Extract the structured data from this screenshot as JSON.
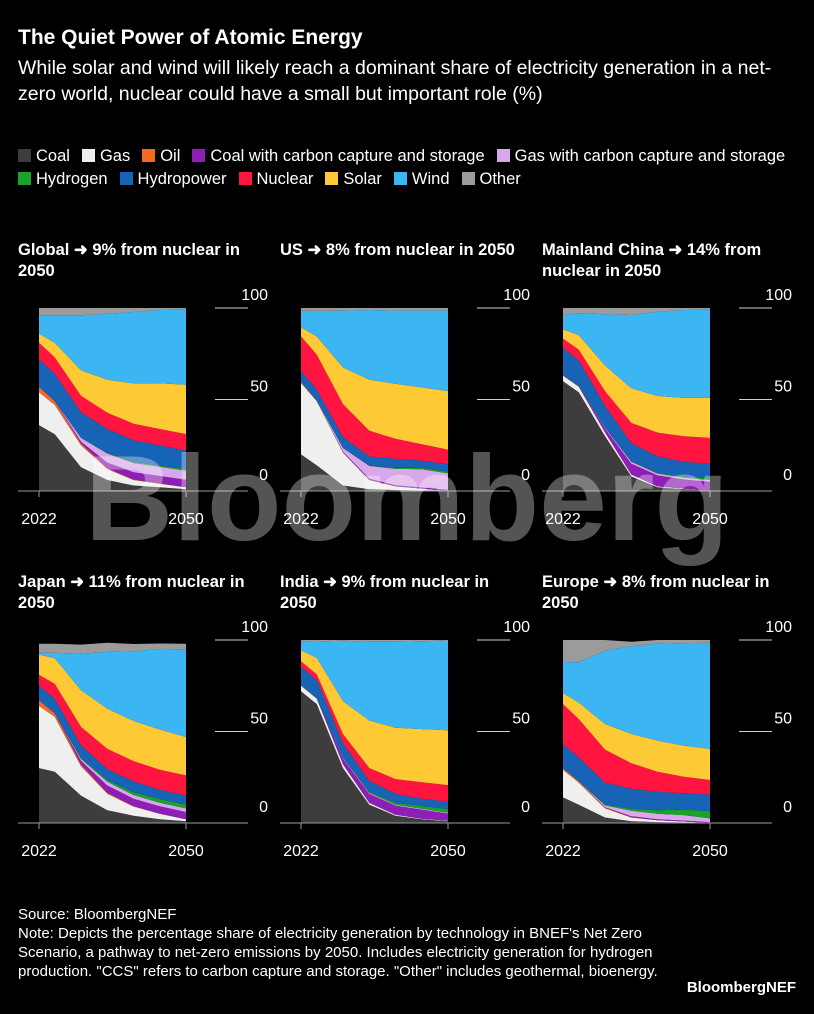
{
  "title": "The Quiet Power of Atomic Energy",
  "subtitle": "While solar and wind will likely reach a dominant share of electricity generation in a net-zero world, nuclear could have a small but important role (%)",
  "legend": [
    {
      "label": "Coal",
      "color": "#3d3d3d"
    },
    {
      "label": "Gas",
      "color": "#efefef"
    },
    {
      "label": "Oil",
      "color": "#f26b21"
    },
    {
      "label": "Coal with carbon capture and storage",
      "color": "#8e1fb6"
    },
    {
      "label": "Gas with carbon capture and storage",
      "color": "#d9a7eb"
    },
    {
      "label": "Hydrogen",
      "color": "#1aa32a"
    },
    {
      "label": "Hydropower",
      "color": "#1763b6"
    },
    {
      "label": "Nuclear",
      "color": "#ff1540"
    },
    {
      "label": "Solar",
      "color": "#fdca36"
    },
    {
      "label": "Wind",
      "color": "#3bb6f2"
    },
    {
      "label": "Other",
      "color": "#9b9b9b"
    }
  ],
  "watermark": "Bloomberg",
  "chart_data": [
    {
      "type": "area",
      "title": "Global ➜ 9% from nuclear in 2050",
      "x": [
        2022,
        2025,
        2030,
        2035,
        2040,
        2045,
        2050
      ],
      "ylim": [
        0,
        100
      ],
      "yticks": [
        0,
        50,
        100
      ],
      "x_tick_labels": [
        "2022",
        "2050"
      ],
      "series": [
        {
          "name": "Coal",
          "values": [
            36,
            31,
            13,
            6,
            3,
            2,
            1
          ]
        },
        {
          "name": "Gas",
          "values": [
            18,
            16,
            12,
            6,
            3,
            2,
            1
          ]
        },
        {
          "name": "Oil",
          "values": [
            3,
            2,
            1,
            0.5,
            0.3,
            0.2,
            0.1
          ]
        },
        {
          "name": "Coal with carbon capture and storage",
          "values": [
            0,
            0,
            1,
            3,
            4,
            4,
            4
          ]
        },
        {
          "name": "Gas with carbon capture and storage",
          "values": [
            0,
            0,
            2,
            5,
            5,
            5,
            5
          ]
        },
        {
          "name": "Hydrogen",
          "values": [
            0,
            0,
            0,
            0.3,
            0.5,
            0.7,
            1
          ]
        },
        {
          "name": "Hydropower",
          "values": [
            15,
            15,
            14,
            13,
            12,
            11,
            10
          ]
        },
        {
          "name": "Nuclear",
          "values": [
            9,
            9,
            9,
            9,
            9,
            9,
            9
          ]
        },
        {
          "name": "Solar",
          "values": [
            5,
            8,
            14,
            18,
            22,
            25,
            27
          ]
        },
        {
          "name": "Wind",
          "values": [
            10,
            15,
            30,
            36,
            39,
            40,
            41
          ]
        },
        {
          "name": "Other",
          "values": [
            4,
            4,
            4,
            3.2,
            2.2,
            1.1,
            0.9
          ]
        }
      ]
    },
    {
      "type": "area",
      "title": "US ➜ 8% from nuclear in 2050",
      "x": [
        2022,
        2025,
        2030,
        2035,
        2040,
        2045,
        2050
      ],
      "ylim": [
        0,
        100
      ],
      "yticks": [
        0,
        50,
        100
      ],
      "x_tick_labels": [
        "2022",
        "2050"
      ],
      "series": [
        {
          "name": "Coal",
          "values": [
            20,
            14,
            3,
            1,
            0.5,
            0.3,
            0
          ]
        },
        {
          "name": "Gas",
          "values": [
            39,
            35,
            18,
            5,
            2,
            1,
            0
          ]
        },
        {
          "name": "Oil",
          "values": [
            0.5,
            0.4,
            0.2,
            0.1,
            0,
            0,
            0
          ]
        },
        {
          "name": "Coal with carbon capture and storage",
          "values": [
            0,
            0,
            0.3,
            0.6,
            0.6,
            0.6,
            0.6
          ]
        },
        {
          "name": "Gas with carbon capture and storage",
          "values": [
            0,
            0,
            2,
            7,
            9,
            10,
            9
          ]
        },
        {
          "name": "Hydrogen",
          "values": [
            0,
            0,
            0,
            0.2,
            0.5,
            0.7,
            1
          ]
        },
        {
          "name": "Hydropower",
          "values": [
            6,
            6,
            6,
            5,
            5,
            4,
            4
          ]
        },
        {
          "name": "Nuclear",
          "values": [
            19,
            19,
            18,
            14,
            11,
            9,
            8
          ]
        },
        {
          "name": "Solar",
          "values": [
            5,
            10,
            20,
            28,
            30,
            31,
            32
          ]
        },
        {
          "name": "Wind",
          "values": [
            9,
            14,
            31,
            38,
            40,
            42,
            44
          ]
        },
        {
          "name": "Other",
          "values": [
            1.5,
            1.6,
            1.5,
            1.1,
            1.4,
            1.4,
            1.4
          ]
        }
      ]
    },
    {
      "type": "area",
      "title": "Mainland China ➜ 14% from nuclear in 2050",
      "x": [
        2022,
        2025,
        2030,
        2035,
        2040,
        2045,
        2050
      ],
      "ylim": [
        0,
        100
      ],
      "yticks": [
        0,
        50,
        100
      ],
      "x_tick_labels": [
        "2022",
        "2050"
      ],
      "series": [
        {
          "name": "Coal",
          "values": [
            60,
            54,
            30,
            8,
            2,
            1,
            0
          ]
        },
        {
          "name": "Gas",
          "values": [
            3,
            3,
            2,
            1,
            0.5,
            0.3,
            0
          ]
        },
        {
          "name": "Oil",
          "values": [
            0.3,
            0.2,
            0.1,
            0,
            0,
            0,
            0
          ]
        },
        {
          "name": "Coal with carbon capture and storage",
          "values": [
            0,
            0,
            2,
            6,
            6,
            5,
            5
          ]
        },
        {
          "name": "Gas with carbon capture and storage",
          "values": [
            0,
            0,
            0.5,
            1,
            1,
            1,
            1
          ]
        },
        {
          "name": "Hydrogen",
          "values": [
            0,
            0,
            0,
            0.2,
            0.4,
            0.6,
            1
          ]
        },
        {
          "name": "Hydropower",
          "values": [
            15,
            14,
            12,
            10,
            9,
            8,
            8
          ]
        },
        {
          "name": "Nuclear",
          "values": [
            5,
            6,
            8,
            11,
            13,
            14,
            14
          ]
        },
        {
          "name": "Solar",
          "values": [
            5,
            8,
            14,
            19,
            20,
            21,
            22
          ]
        },
        {
          "name": "Wind",
          "values": [
            8,
            12,
            28,
            40,
            46,
            48,
            48
          ]
        },
        {
          "name": "Other",
          "values": [
            3.7,
            2.8,
            3.4,
            3.8,
            2.1,
            1.1,
            1
          ]
        }
      ]
    },
    {
      "type": "area",
      "title": "Japan ➜ 11% from nuclear in 2050",
      "x": [
        2022,
        2025,
        2030,
        2035,
        2040,
        2045,
        2050
      ],
      "ylim": [
        0,
        100
      ],
      "yticks": [
        0,
        50,
        100
      ],
      "x_tick_labels": [
        "2022",
        "2050"
      ],
      "series": [
        {
          "name": "Coal",
          "values": [
            30,
            28,
            15,
            7,
            4,
            2,
            1
          ]
        },
        {
          "name": "Gas",
          "values": [
            34,
            30,
            16,
            9,
            5,
            3,
            1
          ]
        },
        {
          "name": "Oil",
          "values": [
            3,
            2,
            1,
            0.5,
            0.3,
            0.1,
            0
          ]
        },
        {
          "name": "Coal with carbon capture and storage",
          "values": [
            0,
            0,
            2,
            4,
            4,
            4,
            4
          ]
        },
        {
          "name": "Gas with carbon capture and storage",
          "values": [
            0,
            0,
            1,
            2,
            2,
            2,
            2
          ]
        },
        {
          "name": "Hydrogen",
          "values": [
            0,
            0,
            0.5,
            1,
            1.5,
            2,
            2
          ]
        },
        {
          "name": "Hydropower",
          "values": [
            8,
            8,
            7,
            6,
            6,
            5,
            5
          ]
        },
        {
          "name": "Nuclear",
          "values": [
            6,
            8,
            10,
            11,
            11,
            11,
            11
          ]
        },
        {
          "name": "Solar",
          "values": [
            11,
            14,
            20,
            22,
            22,
            22,
            21
          ]
        },
        {
          "name": "Wind",
          "values": [
            1,
            3,
            20,
            31,
            38,
            44,
            48
          ]
        },
        {
          "name": "Other",
          "values": [
            5,
            5,
            5,
            5,
            4,
            3,
            3
          ]
        }
      ]
    },
    {
      "type": "area",
      "title": "India ➜ 9% from nuclear in 2050",
      "x": [
        2022,
        2025,
        2030,
        2035,
        2040,
        2045,
        2050
      ],
      "ylim": [
        0,
        100
      ],
      "yticks": [
        0,
        50,
        100
      ],
      "x_tick_labels": [
        "2022",
        "2050"
      ],
      "series": [
        {
          "name": "Coal",
          "values": [
            72,
            65,
            30,
            10,
            4,
            2,
            1
          ]
        },
        {
          "name": "Gas",
          "values": [
            3,
            3,
            2,
            1,
            0.5,
            0.3,
            0.2
          ]
        },
        {
          "name": "Oil",
          "values": [
            0.3,
            0.2,
            0.1,
            0,
            0,
            0,
            0
          ]
        },
        {
          "name": "Coal with carbon capture and storage",
          "values": [
            0,
            0,
            3,
            5,
            5,
            5,
            4
          ]
        },
        {
          "name": "Gas with carbon capture and storage",
          "values": [
            0,
            0,
            0.5,
            0.5,
            0.5,
            0.5,
            0.5
          ]
        },
        {
          "name": "Hydrogen",
          "values": [
            0,
            0,
            0,
            0.5,
            1,
            1.5,
            2
          ]
        },
        {
          "name": "Hydropower",
          "values": [
            10,
            10,
            8,
            6,
            5,
            4,
            4
          ]
        },
        {
          "name": "Nuclear",
          "values": [
            3,
            3,
            5,
            7,
            8,
            9,
            9
          ]
        },
        {
          "name": "Solar",
          "values": [
            6,
            9,
            18,
            26,
            28,
            29,
            30
          ]
        },
        {
          "name": "Wind",
          "values": [
            5,
            9,
            33,
            43,
            47,
            48,
            49
          ]
        },
        {
          "name": "Other",
          "values": [
            0.7,
            0.8,
            0.4,
            1,
            1,
            0.7,
            0.3
          ]
        }
      ]
    },
    {
      "type": "area",
      "title": "Europe ➜ 8% from nuclear in 2050",
      "x": [
        2022,
        2025,
        2030,
        2035,
        2040,
        2045,
        2050
      ],
      "ylim": [
        0,
        100
      ],
      "yticks": [
        0,
        50,
        100
      ],
      "x_tick_labels": [
        "2022",
        "2050"
      ],
      "series": [
        {
          "name": "Coal",
          "values": [
            14,
            10,
            3,
            1,
            0.5,
            0.3,
            0
          ]
        },
        {
          "name": "Gas",
          "values": [
            15,
            12,
            5,
            2,
            1,
            0.5,
            0
          ]
        },
        {
          "name": "Oil",
          "values": [
            1,
            0.8,
            0.4,
            0.2,
            0,
            0,
            0
          ]
        },
        {
          "name": "Coal with carbon capture and storage",
          "values": [
            0,
            0,
            0.2,
            0.5,
            0.5,
            0.5,
            0.5
          ]
        },
        {
          "name": "Gas with carbon capture and storage",
          "values": [
            0,
            0,
            1,
            3,
            3,
            3,
            2
          ]
        },
        {
          "name": "Hydrogen",
          "values": [
            0,
            0,
            0.5,
            1,
            2,
            3,
            4
          ]
        },
        {
          "name": "Hydropower",
          "values": [
            13,
            13,
            12,
            11,
            10,
            9,
            9
          ]
        },
        {
          "name": "Nuclear",
          "values": [
            22,
            21,
            18,
            14,
            11,
            9,
            8
          ]
        },
        {
          "name": "Solar",
          "values": [
            6,
            9,
            14,
            16,
            17,
            17,
            17
          ]
        },
        {
          "name": "Wind",
          "values": [
            17,
            22,
            40,
            48,
            53,
            56,
            58
          ]
        },
        {
          "name": "Other",
          "values": [
            12,
            12.2,
            5.9,
            2.3,
            2,
            1.7,
            1.5
          ]
        }
      ]
    }
  ],
  "footer": {
    "source": "Source: BloombergNEF",
    "note": "Note: Depicts the percentage share of electricity generation by technology in BNEF's Net Zero Scenario, a pathway to net-zero emissions by 2050. Includes electricity generation for hydrogen production. \"CCS\" refers to carbon capture and storage. \"Other\" includes geothermal, bioenergy."
  },
  "brand": "BloombergNEF"
}
